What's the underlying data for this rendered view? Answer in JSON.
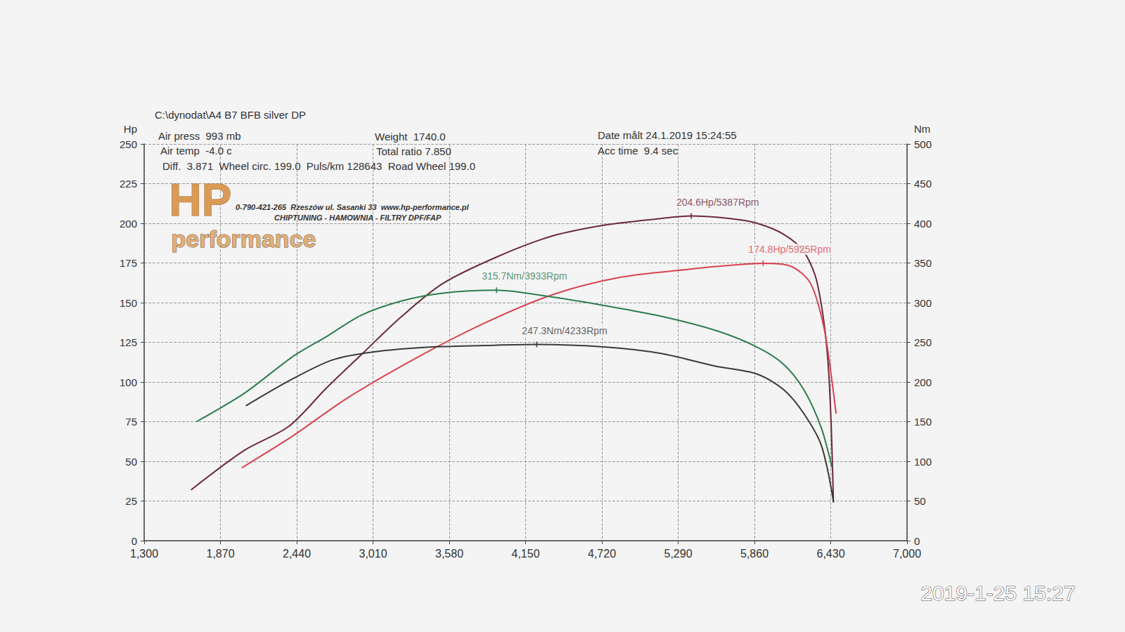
{
  "chart_data": {
    "type": "line",
    "title": "C:\\dynodat\\A4 B7 BFB silver DP",
    "info": [
      "Air press  993 mb",
      "Air temp  -4.0 c",
      "Diff.  3.871  Wheel circ. 199.0  Puls/km 128643  Road Wheel 199.0",
      "Weight  1740.0",
      "Total ratio 7.850",
      "Date målt 24.1.2019 15:24:55",
      "Acc time  9.4 sec"
    ],
    "logo": {
      "mark": "HP",
      "name": "performance",
      "lines": [
        "0-790-421-265  Rzeszów ul. Sasanki 33  www.hp-performance.pl",
        "CHIPTUNING - HAMOWNIA - FILTRY DPF/FAP"
      ]
    },
    "timestamp": "2019-1-25 15:27",
    "xlim": [
      1300,
      7000
    ],
    "xticks": [
      1300,
      1870,
      2440,
      3010,
      3580,
      4150,
      4720,
      5290,
      5860,
      6430,
      7000
    ],
    "ylabel": "Hp",
    "ylim": [
      0,
      250
    ],
    "yticks": [
      0,
      25,
      50,
      75,
      100,
      125,
      150,
      175,
      200,
      225,
      250
    ],
    "y2label": "Nm",
    "y2lim": [
      0,
      500
    ],
    "y2ticks": [
      0,
      50,
      100,
      150,
      200,
      250,
      300,
      350,
      400,
      450,
      500
    ],
    "grid": true,
    "series": [
      {
        "color": "#6b2a3a",
        "axis": "y",
        "x": [
          1650,
          2050,
          2380,
          2660,
          2920,
          3220,
          3530,
          3940,
          4350,
          4750,
          5160,
          5387,
          5680,
          5880,
          6080,
          6230,
          6330,
          6410,
          6450
        ],
        "values": [
          32,
          57,
          72,
          96,
          117,
          141,
          162,
          179,
          192,
          199,
          203,
          204.6,
          203,
          200,
          193,
          182,
          162,
          112,
          24
        ]
      },
      {
        "color": "#d9434f",
        "axis": "y",
        "x": [
          2030,
          2410,
          2820,
          3330,
          3840,
          4350,
          4860,
          5370,
          5670,
          5925,
          6130,
          6280,
          6380,
          6440,
          6470
        ],
        "values": [
          46,
          66,
          90,
          115,
          137,
          155,
          166,
          171,
          173.5,
          174.8,
          173,
          162,
          134,
          100,
          80
        ]
      },
      {
        "color": "#2e7d4f",
        "axis": "y2",
        "x": [
          1690,
          2050,
          2410,
          2660,
          2920,
          3220,
          3530,
          3933,
          4350,
          4750,
          5160,
          5570,
          5880,
          6080,
          6230,
          6360,
          6440
        ],
        "values": [
          150,
          186,
          232,
          257,
          284,
          302,
          312,
          315.7,
          307,
          296,
          283,
          265,
          244,
          222,
          190,
          142,
          92
        ]
      },
      {
        "color": "#3a3a3a",
        "axis": "y2",
        "x": [
          2060,
          2410,
          2710,
          3020,
          3430,
          3840,
          4233,
          4750,
          5160,
          5570,
          5880,
          6080,
          6230,
          6360,
          6450
        ],
        "values": [
          170,
          204,
          228,
          238,
          244,
          246,
          247.3,
          244,
          236,
          220,
          210,
          190,
          160,
          120,
          50
        ]
      }
    ],
    "annotations": [
      {
        "text": "204.6Hp/5387Rpm",
        "x": 5387,
        "y": 204.6,
        "axis": "y",
        "color": "#6b2a3a"
      },
      {
        "text": "174.8Hp/5925Rpm",
        "x": 5925,
        "y": 174.8,
        "axis": "y",
        "color": "#d9434f"
      },
      {
        "text": "315.7Nm/3933Rpm",
        "x": 3933,
        "y": 315.7,
        "axis": "y2",
        "color": "#2e7d4f"
      },
      {
        "text": "247.3Nm/4233Rpm",
        "x": 4233,
        "y": 247.3,
        "axis": "y2",
        "color": "#3a3a3a"
      }
    ]
  }
}
